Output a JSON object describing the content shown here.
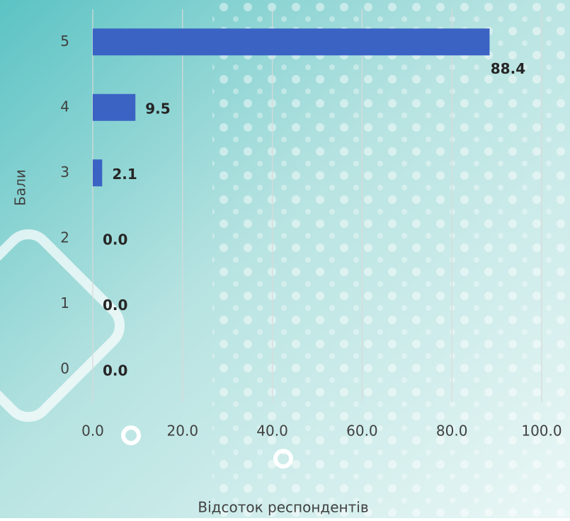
{
  "chart_data": {
    "type": "bar",
    "orientation": "horizontal",
    "x_label": "Відсоток респондентів",
    "y_label": "Бали",
    "categories": [
      "0",
      "1",
      "2",
      "3",
      "4",
      "5"
    ],
    "values": [
      0,
      0,
      0,
      2.1,
      9.5,
      88.4
    ],
    "value_labels": [
      "0.0",
      "0.0",
      "0.0",
      "2.1",
      "9.5",
      "88.4"
    ],
    "color": "#3b63c4",
    "xlim": [
      0,
      100
    ],
    "xticks": [
      {
        "value": 0,
        "label": "0.0"
      },
      {
        "value": 20,
        "label": "20.0"
      },
      {
        "value": 40,
        "label": "40.0"
      },
      {
        "value": 60,
        "label": "60.0"
      },
      {
        "value": 80,
        "label": "80.0"
      },
      {
        "value": 100,
        "label": "100.0"
      }
    ],
    "grid": true
  }
}
